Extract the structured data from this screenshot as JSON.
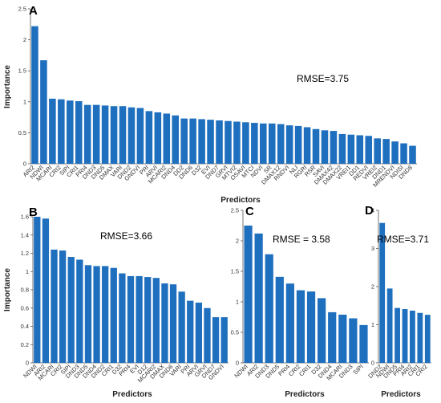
{
  "chart_data": [
    {
      "panel": "A",
      "type": "bar",
      "annotation": "RMSE=3.75",
      "xlabel": "Predictors",
      "ylabel": "Importance",
      "ylim": [
        0,
        2.5
      ],
      "yticks": [
        "0",
        "0.5",
        "1",
        "1.5",
        "2",
        "2.5"
      ],
      "bar_color": "#1f6fbf",
      "categories": [
        "ARI2",
        "NDWI",
        "MCARI",
        "CRI2",
        "SIPI",
        "CRI1",
        "PRI4",
        "DND3",
        "DND5",
        "DMAX",
        "VARI",
        "DND2",
        "GNDVI",
        "PRI",
        "ARVI",
        "MCARI2",
        "DND4",
        "DD2",
        "DND6",
        "D32",
        "EVI",
        "DND7",
        "GRVI",
        "MTVI2",
        "OSAVI",
        "MTCI",
        "NDVI",
        "SR",
        "DMAX12",
        "RNDVI",
        "NLI",
        "RGRI",
        "RSR",
        "SAVI",
        "DMAX42",
        "DMAX22",
        "VREI1",
        "DD1",
        "REDVI",
        "VREI2",
        "DND1",
        "MRENDVI",
        "NDISI",
        "DND8"
      ],
      "values": [
        2.22,
        1.67,
        1.05,
        1.04,
        1.02,
        1.01,
        0.95,
        0.95,
        0.94,
        0.93,
        0.93,
        0.91,
        0.9,
        0.85,
        0.83,
        0.81,
        0.78,
        0.73,
        0.73,
        0.72,
        0.71,
        0.7,
        0.69,
        0.68,
        0.67,
        0.66,
        0.65,
        0.65,
        0.64,
        0.62,
        0.61,
        0.59,
        0.56,
        0.54,
        0.53,
        0.48,
        0.47,
        0.46,
        0.45,
        0.41,
        0.4,
        0.36,
        0.33,
        0.29
      ]
    },
    {
      "panel": "B",
      "type": "bar",
      "annotation": "RMSE=3.66",
      "xlabel": "Predictors",
      "ylabel": "Importance",
      "ylim": [
        0,
        1.6
      ],
      "yticks": [
        "0",
        "0.2",
        "0.4",
        "0.6",
        "0.8",
        "1",
        "1.2",
        "1.4",
        "1.6"
      ],
      "bar_color": "#1f6fbf",
      "categories": [
        "NDWI",
        "ARI2",
        "MCARI",
        "CRI2",
        "SIPI",
        "DND3",
        "DND5",
        "DND4",
        "DND2",
        "CRI1",
        "D32",
        "PRI4",
        "EVI",
        "D12",
        "MCARI2",
        "DMAX",
        "DND6",
        "VARI",
        "PRI",
        "ARVI",
        "GRVI",
        "DND7",
        "GNDVI"
      ],
      "values": [
        1.6,
        1.58,
        1.24,
        1.23,
        1.16,
        1.13,
        1.07,
        1.06,
        1.06,
        1.04,
        0.98,
        0.95,
        0.95,
        0.94,
        0.93,
        0.87,
        0.86,
        0.78,
        0.68,
        0.66,
        0.6,
        0.5,
        0.5
      ]
    },
    {
      "panel": "C",
      "type": "bar",
      "annotation": "RMSE = 3.58",
      "xlabel": "Predictors",
      "ylabel": "",
      "ylim": [
        0,
        2.5
      ],
      "yticks": [
        "0",
        "0.5",
        "1",
        "1.5",
        "2",
        "2.5"
      ],
      "bar_color": "#1f6fbf",
      "categories": [
        "NDWI",
        "ARI2",
        "DND3",
        "DND5",
        "PRI4",
        "CRI2",
        "CRI1",
        "D32",
        "DND4",
        "MCARI",
        "DND3",
        "SIPI"
      ],
      "values": [
        2.25,
        2.12,
        1.78,
        1.41,
        1.3,
        1.19,
        1.17,
        1.06,
        0.83,
        0.79,
        0.73,
        0.62
      ]
    },
    {
      "panel": "D",
      "type": "bar",
      "annotation": "RMSE=3.71",
      "xlabel": "Predictors",
      "ylabel": "",
      "ylim": [
        0,
        4
      ],
      "yticks": [
        "0",
        "1",
        "2",
        "3",
        "4"
      ],
      "bar_color": "#1f6fbf",
      "categories": [
        "DND2",
        "NDWI",
        "DND5",
        "PRI4",
        "ARI2",
        "CRI1",
        "CRI2"
      ],
      "values": [
        3.67,
        1.95,
        1.44,
        1.41,
        1.37,
        1.31,
        1.26
      ]
    }
  ]
}
